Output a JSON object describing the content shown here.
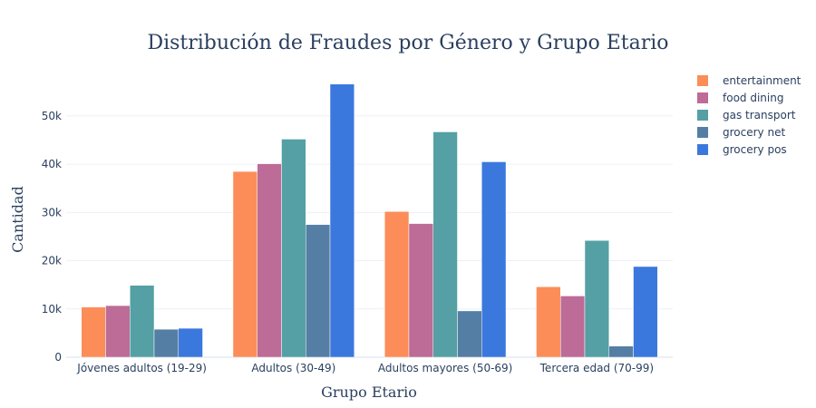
{
  "chart_data": {
    "type": "bar",
    "title": "Distribución de Fraudes por Género y Grupo Etario",
    "xlabel": "Grupo Etario",
    "ylabel": "Cantidad",
    "categories": [
      "Jóvenes adultos (19-29)",
      "Adultos (30-49)",
      "Adultos mayores (50-69)",
      "Tercera edad (70-99)"
    ],
    "ylim": [
      0,
      59000
    ],
    "yticks": [
      0,
      10000,
      20000,
      30000,
      40000,
      50000
    ],
    "ytick_labels": [
      "0",
      "10k",
      "20k",
      "30k",
      "40k",
      "50k"
    ],
    "grid": true,
    "legend_position": "top-right",
    "series": [
      {
        "name": "entertainment",
        "color": "#fc8d59",
        "values": [
          10400,
          38500,
          30200,
          14600
        ]
      },
      {
        "name": "food dining",
        "color": "#bc6c96",
        "values": [
          10700,
          40100,
          27700,
          12700
        ]
      },
      {
        "name": "gas transport",
        "color": "#54a0a4",
        "values": [
          14900,
          45200,
          46700,
          24200
        ]
      },
      {
        "name": "grocery net",
        "color": "#557ea4",
        "values": [
          5800,
          27500,
          9600,
          2300
        ]
      },
      {
        "name": "grocery pos",
        "color": "#3b78de",
        "values": [
          6000,
          56600,
          40500,
          18800
        ]
      }
    ]
  }
}
